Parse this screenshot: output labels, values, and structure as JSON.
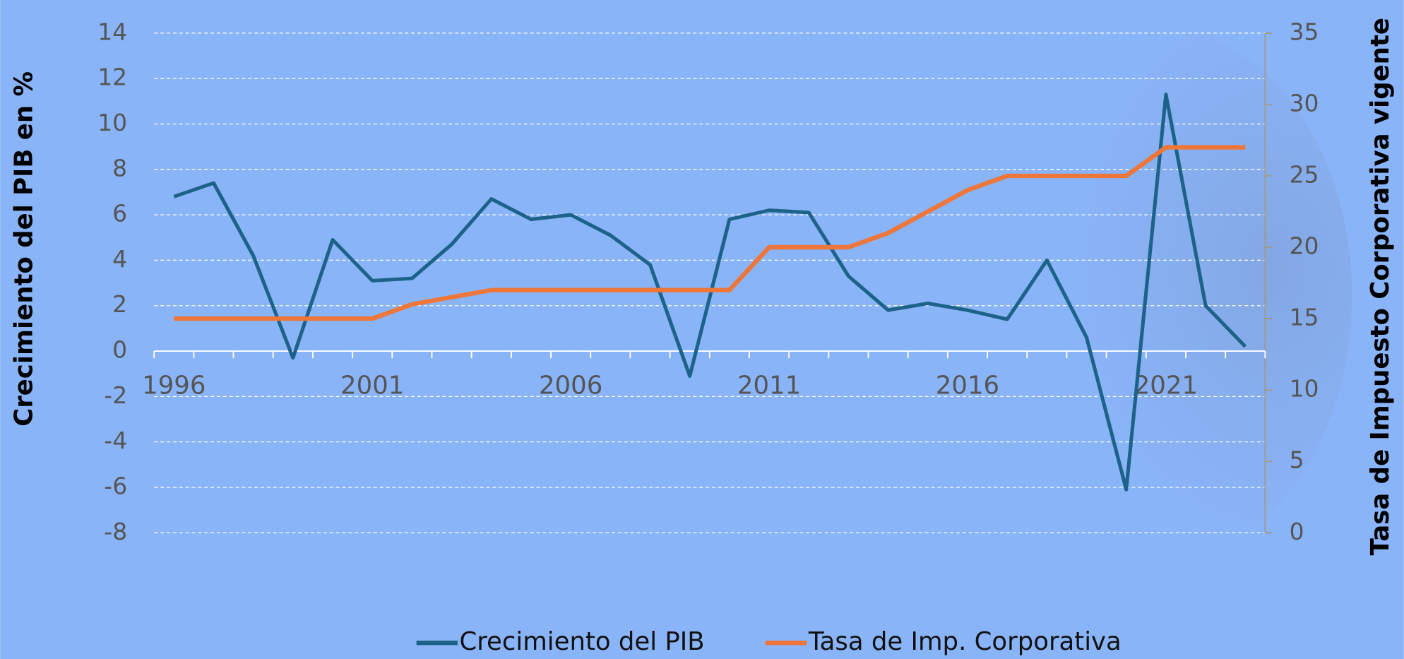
{
  "chart_data": {
    "type": "line",
    "x": [
      1996,
      1997,
      1998,
      1999,
      2000,
      2001,
      2002,
      2003,
      2004,
      2005,
      2006,
      2007,
      2008,
      2009,
      2010,
      2011,
      2012,
      2013,
      2014,
      2015,
      2016,
      2017,
      2018,
      2019,
      2020,
      2021,
      2022,
      2023
    ],
    "xlim": [
      1995.5,
      2023.5
    ],
    "xticks": [
      1996,
      2001,
      2006,
      2011,
      2016,
      2021
    ],
    "ylabel": "Crecimiento del PIB en %",
    "y2label": "Tasa de Impuesto Corporativa vigente",
    "ylim": [
      -8,
      14
    ],
    "yticks": [
      -8,
      -6,
      -4,
      -2,
      0,
      2,
      4,
      6,
      8,
      10,
      12,
      14
    ],
    "y2lim": [
      0,
      35
    ],
    "y2ticks": [
      0,
      5,
      10,
      15,
      20,
      25,
      30,
      35
    ],
    "grid": true,
    "legend": "bottom",
    "series": [
      {
        "name": "Crecimiento del PIB",
        "color": "#1d6389",
        "values": [
          6.8,
          7.4,
          4.2,
          -0.3,
          4.9,
          3.1,
          3.2,
          4.7,
          6.7,
          5.8,
          6.0,
          5.1,
          3.8,
          -1.1,
          5.8,
          6.2,
          6.1,
          3.3,
          1.8,
          2.1,
          1.8,
          1.4,
          4.0,
          0.6,
          -6.1,
          11.3,
          2.0,
          0.2
        ]
      },
      {
        "name": "Tasa de Imp. Corporativa",
        "color": "#ee7638",
        "axis": "y2",
        "values": [
          15,
          15,
          15,
          15,
          15,
          15,
          16,
          16.5,
          17,
          17,
          17,
          17,
          17,
          17,
          17,
          20,
          20,
          20,
          21,
          22.5,
          24,
          25,
          25,
          25,
          25,
          27,
          27,
          27
        ]
      }
    ]
  }
}
